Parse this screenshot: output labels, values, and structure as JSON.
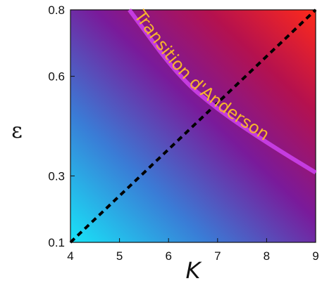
{
  "chart_data": {
    "type": "heatmap",
    "title": "",
    "xlabel": "K",
    "ylabel": "ε",
    "xlim": [
      4,
      9
    ],
    "ylim": [
      0.1,
      0.8
    ],
    "xticks": [
      4,
      5,
      6,
      7,
      8,
      9
    ],
    "xtick_labels": [
      "4",
      "5",
      "6",
      "7",
      "8",
      "9"
    ],
    "yticks": [
      0.1,
      0.3,
      0.6,
      0.8
    ],
    "ytick_labels": [
      "0.1",
      "0.3",
      "0.6",
      "0.8"
    ],
    "colormap": {
      "low": "#18e4f7",
      "mid": "#7a1a9a",
      "high": "#ff2a1a"
    },
    "lines": [
      {
        "style": "dashed",
        "color": "#000000",
        "x": [
          4,
          9
        ],
        "y": [
          0.1,
          0.8
        ]
      },
      {
        "style": "solid",
        "color": "#c53ce0",
        "x": [
          5.2,
          6.2,
          7.0,
          8.0,
          9.0
        ],
        "y": [
          0.8,
          0.6,
          0.5,
          0.4,
          0.31
        ]
      }
    ],
    "annotations": [
      {
        "text": "Transition d'Anderson",
        "color": "#f7b52c"
      }
    ]
  }
}
